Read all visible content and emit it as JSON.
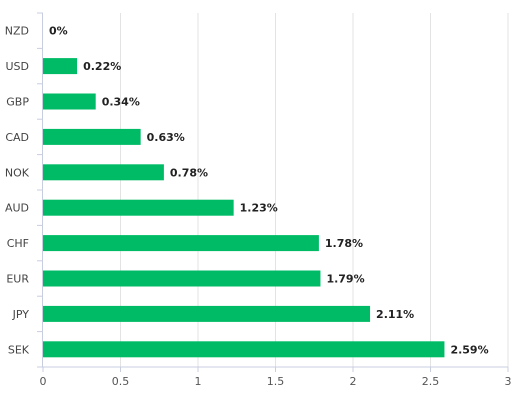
{
  "chart_data": {
    "type": "bar",
    "orientation": "horizontal",
    "categories": [
      "NZD",
      "USD",
      "GBP",
      "CAD",
      "NOK",
      "AUD",
      "CHF",
      "EUR",
      "JPY",
      "SEK"
    ],
    "values": [
      0,
      0.22,
      0.34,
      0.63,
      0.78,
      1.23,
      1.78,
      1.79,
      2.11,
      2.59
    ],
    "value_labels": [
      "0%",
      "0.22%",
      "0.34%",
      "0.63%",
      "0.78%",
      "1.23%",
      "1.78%",
      "1.79%",
      "2.11%",
      "2.59%"
    ],
    "x_ticks": [
      "0",
      "0.5",
      "1",
      "1.5",
      "2",
      "2.5",
      "3"
    ],
    "xlim": [
      0,
      3
    ],
    "title": "",
    "xlabel": "",
    "ylabel": "",
    "grid": "vertical",
    "legend": "none",
    "bar_color": "#00bb66",
    "grid_color": "#e3e3e3",
    "axis_color": "#c8cde0"
  }
}
